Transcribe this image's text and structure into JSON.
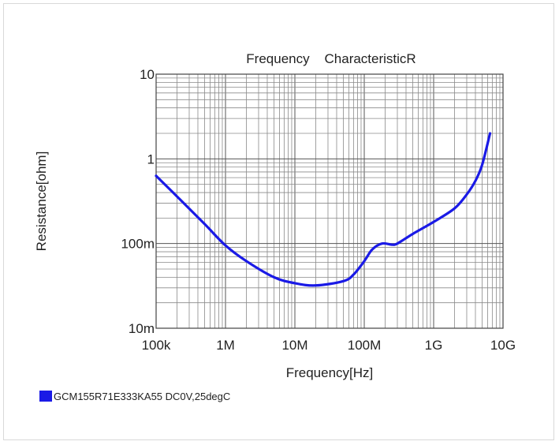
{
  "chart_data": {
    "type": "line",
    "title": "Frequency    CharacteristicR",
    "xlabel": "Frequency[Hz]",
    "ylabel": "Resistance[ohm]",
    "x_scale": "log",
    "y_scale": "log",
    "xlim": [
      100000,
      10000000000
    ],
    "ylim": [
      0.01,
      10
    ],
    "grid": true,
    "legend_position": "bottom-left",
    "x_ticks": [
      {
        "value": 100000,
        "label": "100k"
      },
      {
        "value": 1000000,
        "label": "1M"
      },
      {
        "value": 10000000,
        "label": "10M"
      },
      {
        "value": 100000000,
        "label": "100M"
      },
      {
        "value": 1000000000,
        "label": "1G"
      },
      {
        "value": 10000000000,
        "label": "10G"
      }
    ],
    "y_ticks": [
      {
        "value": 0.01,
        "label": "10m"
      },
      {
        "value": 0.1,
        "label": "100m"
      },
      {
        "value": 1,
        "label": "1"
      },
      {
        "value": 10,
        "label": "10"
      }
    ],
    "series": [
      {
        "name": "GCM155R71E333KA55 DC0V,25degC",
        "color": "#1a1ae6",
        "x": [
          100000,
          200000,
          500000,
          1000000,
          2000000,
          5000000,
          10000000,
          20000000,
          50000000,
          70000000,
          100000000,
          130000000,
          180000000,
          250000000,
          300000000,
          500000000,
          1000000000,
          2000000000,
          3000000000,
          4000000000,
          5000000000,
          6500000000
        ],
        "y": [
          0.63,
          0.36,
          0.17,
          0.095,
          0.062,
          0.04,
          0.034,
          0.032,
          0.036,
          0.043,
          0.062,
          0.085,
          0.1,
          0.097,
          0.1,
          0.13,
          0.18,
          0.26,
          0.38,
          0.55,
          0.85,
          2.0
        ]
      }
    ]
  }
}
